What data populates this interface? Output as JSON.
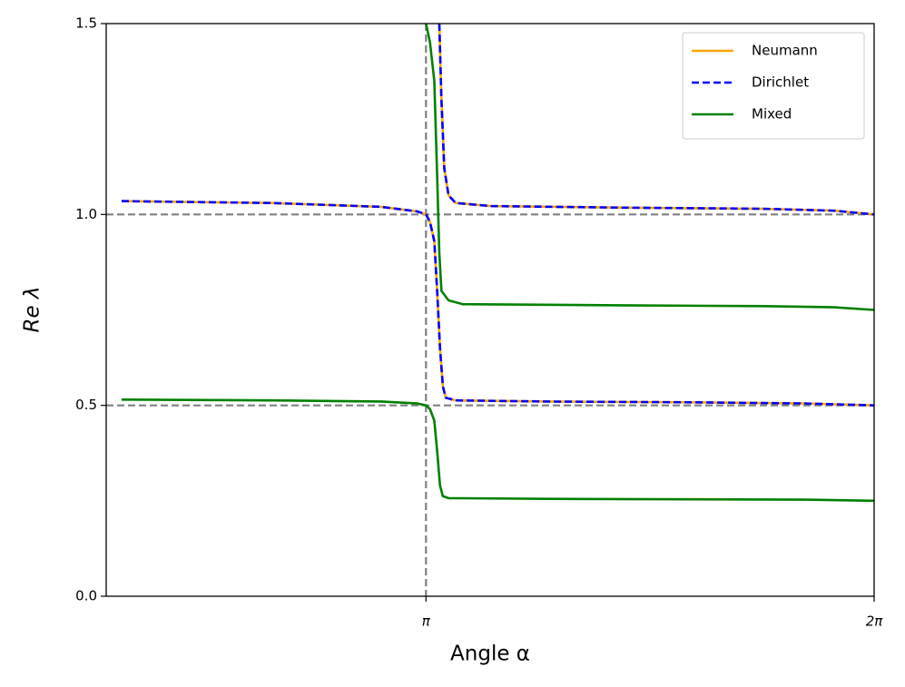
{
  "chart_data": {
    "type": "line",
    "x_label": "Angle α",
    "y_label": "Re λ",
    "xlim": [
      0.9,
      6.2832
    ],
    "ylim": [
      0,
      1.5
    ],
    "xticks": [
      {
        "value": 3.1416,
        "label": "π"
      },
      {
        "value": 6.2832,
        "label": "2π"
      }
    ],
    "yticks": [
      {
        "value": 0,
        "label": "0.0"
      },
      0.5,
      {
        "value": 1,
        "label": "1.0"
      },
      1.5
    ],
    "reference_lines": {
      "color": "#808080",
      "y": [
        0.5,
        1.0
      ],
      "x": [
        3.1416
      ]
    },
    "legend": "upper right",
    "series": [
      {
        "name": "Neumann",
        "color": "#ffa500",
        "dash": "solid",
        "x": [
          1.008,
          2.064,
          2.827,
          3.08,
          3.142,
          3.17,
          3.2,
          3.22,
          3.24,
          3.26,
          3.28,
          3.35,
          4.0,
          5.0,
          5.8,
          6.2832,
          null,
          3.235,
          3.25,
          3.27,
          3.3,
          3.35,
          3.6,
          4.5,
          5.5,
          6.0,
          6.2832
        ],
        "values": [
          1.035,
          1.03,
          1.02,
          1.008,
          1.0,
          0.98,
          0.93,
          0.8,
          0.65,
          0.55,
          0.52,
          0.513,
          0.51,
          0.508,
          0.505,
          0.5,
          null,
          1.5,
          1.3,
          1.12,
          1.05,
          1.03,
          1.022,
          1.018,
          1.015,
          1.01,
          1.0
        ]
      },
      {
        "name": "Dirichlet",
        "color": "#0000ff",
        "dash": "dashed",
        "x": [
          1.008,
          2.064,
          2.827,
          3.08,
          3.142,
          3.17,
          3.2,
          3.22,
          3.24,
          3.26,
          3.28,
          3.35,
          4.0,
          5.0,
          5.8,
          6.2832,
          null,
          3.235,
          3.25,
          3.27,
          3.3,
          3.35,
          3.6,
          4.5,
          5.5,
          6.0,
          6.2832
        ],
        "values": [
          1.035,
          1.03,
          1.02,
          1.008,
          1.0,
          0.98,
          0.93,
          0.8,
          0.65,
          0.55,
          0.52,
          0.513,
          0.51,
          0.508,
          0.505,
          0.5,
          null,
          1.5,
          1.3,
          1.12,
          1.05,
          1.03,
          1.022,
          1.018,
          1.015,
          1.01,
          1.0
        ]
      },
      {
        "name": "Mixed",
        "color": "#008000",
        "dash": "solid",
        "x": [
          1.008,
          2.064,
          2.827,
          3.08,
          3.142,
          3.17,
          3.2,
          3.22,
          3.24,
          3.26,
          3.3,
          4.0,
          5.0,
          5.8,
          6.2832,
          null,
          3.142,
          3.17,
          3.2,
          3.22,
          3.235,
          3.25,
          3.3,
          3.4,
          4.5,
          5.5,
          6.0,
          6.2832
        ],
        "values": [
          0.515,
          0.513,
          0.51,
          0.505,
          0.5,
          0.49,
          0.46,
          0.38,
          0.29,
          0.262,
          0.257,
          0.255,
          0.254,
          0.253,
          0.25,
          null,
          1.5,
          1.45,
          1.35,
          1.1,
          0.9,
          0.8,
          0.775,
          0.765,
          0.762,
          0.76,
          0.757,
          0.75
        ]
      }
    ]
  }
}
